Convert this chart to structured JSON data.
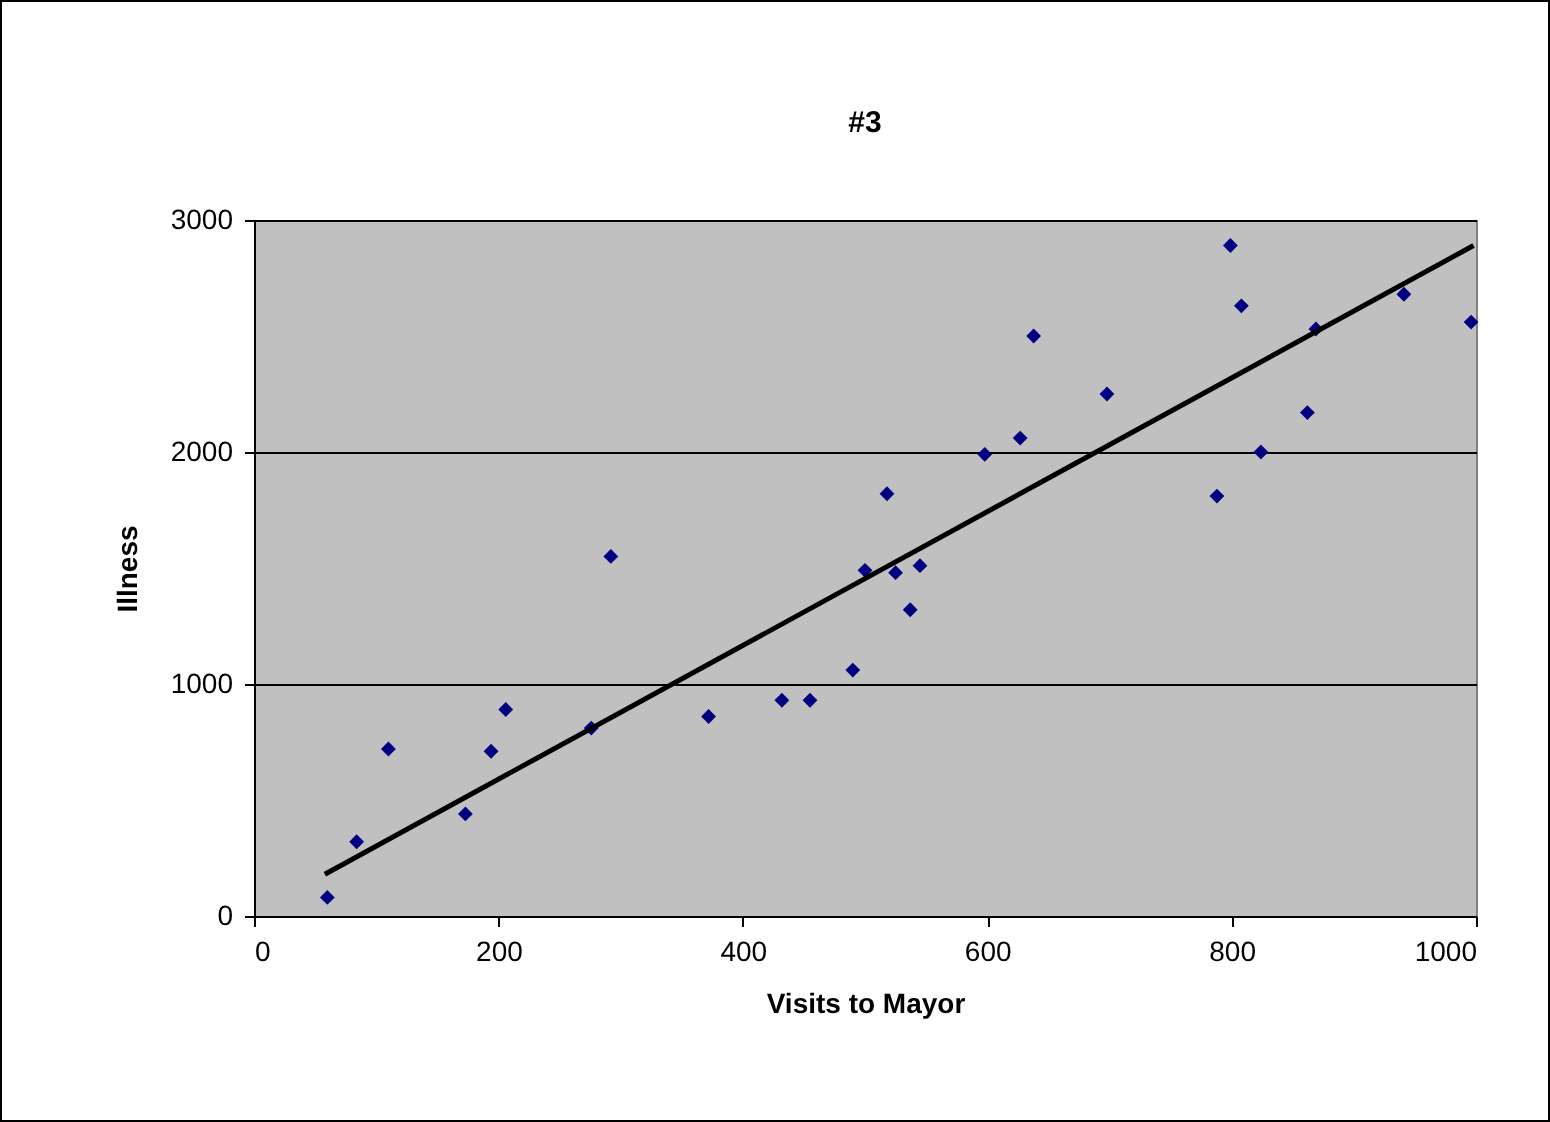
{
  "chart_data": {
    "type": "scatter",
    "title": "#3",
    "xlabel": "Visits to Mayor",
    "ylabel": "Illness",
    "series": [
      {
        "color": "#000080",
        "marker": "diamond",
        "x": [
          60,
          84,
          110,
          173,
          194,
          206,
          276,
          292,
          372,
          432,
          455,
          490,
          500,
          518,
          525,
          537,
          545,
          598,
          627,
          638,
          698,
          788,
          799,
          808,
          824,
          862,
          869,
          941,
          996
        ],
        "values": [
          80,
          320,
          720,
          440,
          710,
          890,
          810,
          1550,
          860,
          930,
          930,
          1060,
          1490,
          1820,
          1480,
          1320,
          1510,
          1990,
          2060,
          2500,
          2250,
          1810,
          2890,
          2630,
          2000,
          2170,
          2530,
          2680,
          2560
        ]
      },
      {
        "type": "line",
        "color": "#000000",
        "x": [
          58,
          998
        ],
        "values": [
          180,
          2890
        ]
      }
    ],
    "xlim": [
      0,
      1000
    ],
    "xticks": [
      0,
      200,
      400,
      600,
      800,
      1000
    ],
    "ylim": [
      0,
      3000
    ],
    "yticks": [
      0,
      1000,
      2000,
      3000
    ],
    "grid": "y"
  }
}
